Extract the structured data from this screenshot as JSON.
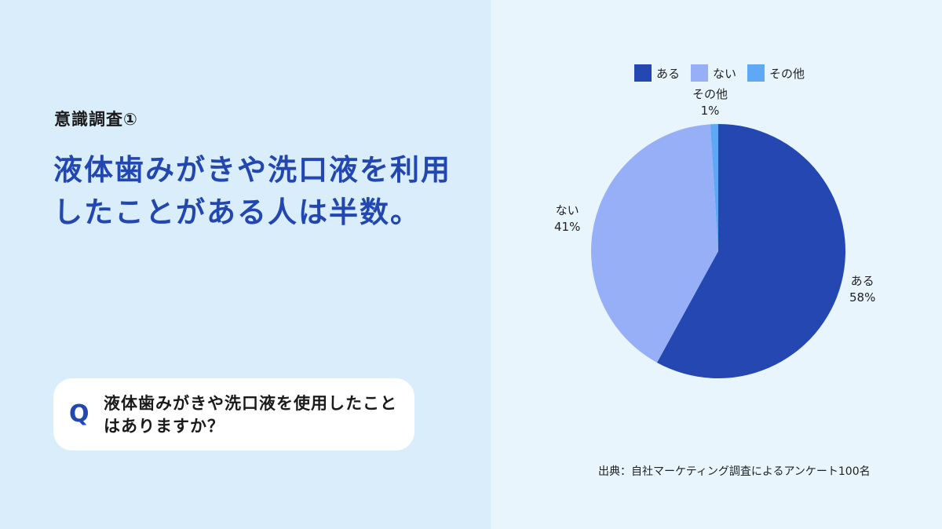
{
  "left": {
    "survey_label": "意識調査①",
    "headline": "液体歯みがきや洗口液を利用したことがある人は半数。"
  },
  "question": {
    "mark": "Q",
    "text": "液体歯みがきや洗口液を使用したことはありますか？"
  },
  "source": "出典：自社マーケティング調査によるアンケート100名",
  "chart_data": {
    "type": "pie",
    "categories": [
      "ある",
      "ない",
      "その他"
    ],
    "values": [
      58,
      41,
      1
    ],
    "labels": [
      "58%",
      "41%",
      "1%"
    ],
    "colors": [
      "#2447b1",
      "#96aff6",
      "#5ea8f5"
    ],
    "legend": "top",
    "start_angle_deg": 0,
    "direction": "clockwise"
  }
}
